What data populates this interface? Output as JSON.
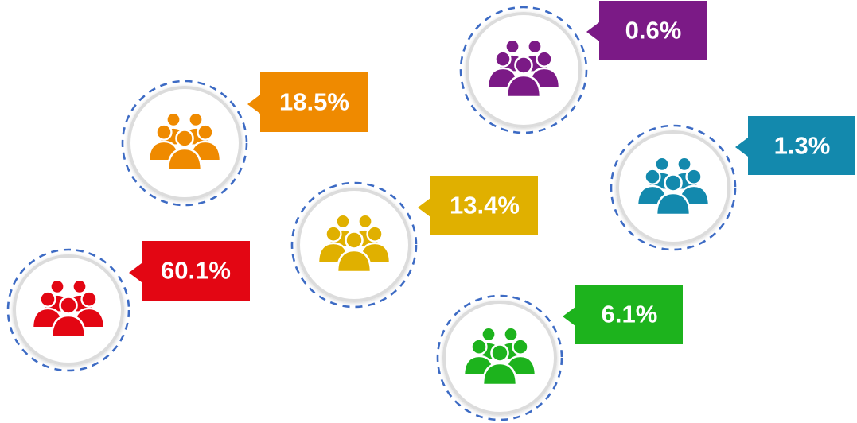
{
  "groups": [
    {
      "key": "red",
      "percent": "60.1%",
      "color": "#e30613",
      "icon": "people-group-icon"
    },
    {
      "key": "orange",
      "percent": "18.5%",
      "color": "#ef8a00",
      "icon": "people-group-icon"
    },
    {
      "key": "yellow",
      "percent": "13.4%",
      "color": "#e0b000",
      "icon": "people-group-icon"
    },
    {
      "key": "green",
      "percent": "6.1%",
      "color": "#1db31d",
      "icon": "people-group-icon"
    },
    {
      "key": "blue",
      "percent": "1.3%",
      "color": "#1389ad",
      "icon": "people-group-icon"
    },
    {
      "key": "purple",
      "percent": "0.6%",
      "color": "#7b1a86",
      "icon": "people-group-icon"
    }
  ],
  "style": {
    "ring_color": "#dcdcdc",
    "dash_color": "#3d6bc4",
    "label_text_color": "#ffffff"
  }
}
